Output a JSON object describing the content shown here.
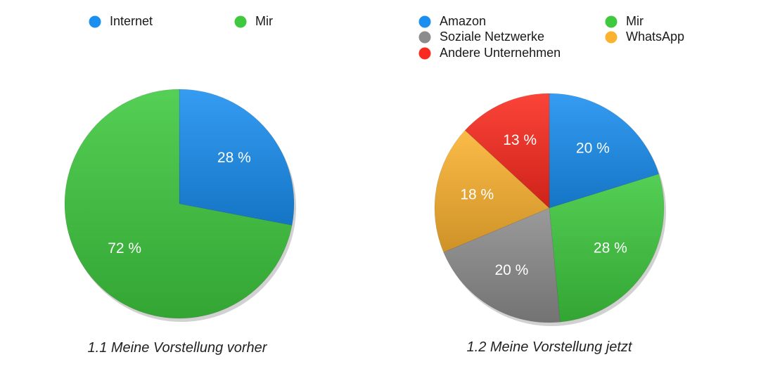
{
  "chart_data": [
    {
      "type": "pie",
      "title": "1.1 Meine Vorstellung vorher",
      "slices": [
        {
          "name": "Internet",
          "value": 28,
          "label": "28 %",
          "color": "#1a8ff0"
        },
        {
          "name": "Mir",
          "value": 72,
          "label": "72 %",
          "color": "#3ec93e"
        }
      ],
      "legend": [
        {
          "name": "Internet",
          "color": "#1a8ff0"
        },
        {
          "name": "Mir",
          "color": "#3ec93e"
        }
      ],
      "legend_position": "top"
    },
    {
      "type": "pie",
      "title": "1.2 Meine Vorstellung jetzt",
      "slices": [
        {
          "name": "Amazon",
          "value": 20,
          "label": "20 %",
          "color": "#1a8ff0"
        },
        {
          "name": "Mir",
          "value": 28,
          "label": "28 %",
          "color": "#3ec93e"
        },
        {
          "name": "Soziale Netzwerke",
          "value": 20,
          "label": "20 %",
          "color": "#8c8c8c"
        },
        {
          "name": "WhatsApp",
          "value": 18,
          "label": "18 %",
          "color": "#fbb22f"
        },
        {
          "name": "Andere Unternehmen",
          "value": 13,
          "label": "13 %",
          "color": "#fb2a1e"
        }
      ],
      "legend": [
        {
          "name": "Amazon",
          "color": "#1a8ff0"
        },
        {
          "name": "Mir",
          "color": "#3ec93e"
        },
        {
          "name": "Soziale Netzwerke",
          "color": "#8c8c8c"
        },
        {
          "name": "WhatsApp",
          "color": "#fbb22f"
        },
        {
          "name": "Andere Unternehmen",
          "color": "#fb2a1e"
        }
      ],
      "legend_position": "top"
    }
  ]
}
